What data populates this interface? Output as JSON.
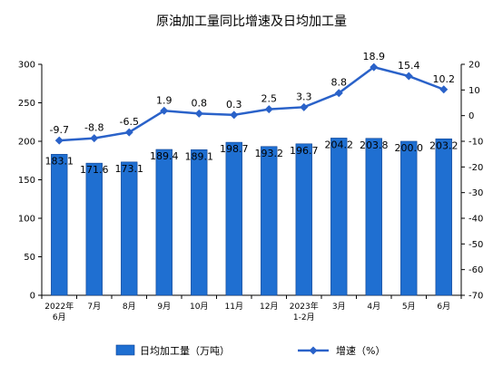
{
  "chart_data": {
    "type": "bar+line",
    "title": "原油加工量同比增速及日均加工量",
    "categories": [
      [
        "2022年",
        "6月"
      ],
      [
        "7月"
      ],
      [
        "8月"
      ],
      [
        "9月"
      ],
      [
        "10月"
      ],
      [
        "11月"
      ],
      [
        "12月"
      ],
      [
        "2023年",
        "1-2月"
      ],
      [
        "3月"
      ],
      [
        "4月"
      ],
      [
        "5月"
      ],
      [
        "6月"
      ]
    ],
    "series": [
      {
        "name": "日均加工量（万吨）",
        "type": "bar",
        "axis": "left",
        "color": "#1f6fd1",
        "values": [
          183.1,
          171.6,
          173.1,
          189.4,
          189.1,
          198.7,
          193.2,
          196.7,
          204.2,
          203.8,
          200.0,
          203.2
        ],
        "labels": [
          "183.1",
          "171.6",
          "173.1",
          "189.4",
          "189.1",
          "198.7",
          "193.2",
          "196.7",
          "204.2",
          "203.8",
          "200.0",
          "203.2"
        ]
      },
      {
        "name": "增速（%）",
        "type": "line",
        "axis": "right",
        "color": "#2a62c9",
        "values": [
          -9.7,
          -8.8,
          -6.5,
          1.9,
          0.8,
          0.3,
          2.5,
          3.3,
          8.8,
          18.9,
          15.4,
          10.2
        ],
        "labels": [
          "-9.7",
          "-8.8",
          "-6.5",
          "1.9",
          "0.8",
          "0.3",
          "2.5",
          "3.3",
          "8.8",
          "18.9",
          "15.4",
          "10.2"
        ]
      }
    ],
    "y_left": {
      "min": 0,
      "max": 300,
      "step": 50,
      "ticks": [
        "0",
        "50",
        "100",
        "150",
        "200",
        "250",
        "300"
      ]
    },
    "y_right": {
      "min": -70,
      "max": 20,
      "step": 10,
      "ticks": [
        "-70",
        "-60",
        "-50",
        "-40",
        "-30",
        "-20",
        "-10",
        "0",
        "10",
        "20"
      ]
    },
    "legend": {
      "placement": "bottom",
      "items": [
        {
          "label": "日均加工量（万吨）",
          "kind": "bar"
        },
        {
          "label": "增速（%）",
          "kind": "line"
        }
      ]
    },
    "grid": false
  }
}
